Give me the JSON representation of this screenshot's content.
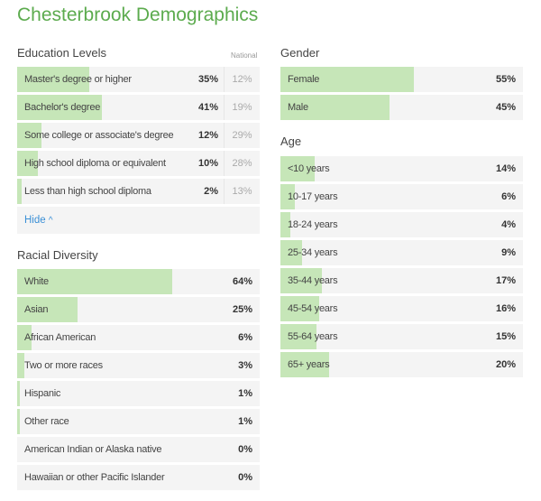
{
  "title": "Chesterbrook Demographics",
  "colors": {
    "title": "#5cab4e",
    "bar": "#c6e6b8",
    "row_bg": "#f4f4f4",
    "link": "#3a8fd6"
  },
  "education": {
    "title": "Education Levels",
    "national_label": "National",
    "hide_label": "Hide",
    "hide_icon": "chevron-up-icon",
    "rows": [
      {
        "label": "Master's degree or higher",
        "value": 35,
        "text": "35%",
        "national": "12%"
      },
      {
        "label": "Bachelor's degree",
        "value": 41,
        "text": "41%",
        "national": "19%"
      },
      {
        "label": "Some college or associate's degree",
        "value": 12,
        "text": "12%",
        "national": "29%"
      },
      {
        "label": "High school diploma or equivalent",
        "value": 10,
        "text": "10%",
        "national": "28%"
      },
      {
        "label": "Less than high school diploma",
        "value": 2,
        "text": "2%",
        "national": "13%"
      }
    ]
  },
  "race": {
    "title": "Racial Diversity",
    "rows": [
      {
        "label": "White",
        "value": 64,
        "text": "64%"
      },
      {
        "label": "Asian",
        "value": 25,
        "text": "25%"
      },
      {
        "label": "African American",
        "value": 6,
        "text": "6%"
      },
      {
        "label": "Two or more races",
        "value": 3,
        "text": "3%"
      },
      {
        "label": "Hispanic",
        "value": 1,
        "text": "1%"
      },
      {
        "label": "Other race",
        "value": 1,
        "text": "1%"
      },
      {
        "label": "American Indian or Alaska native",
        "value": 0,
        "text": "0%"
      },
      {
        "label": "Hawaiian or other Pacific Islander",
        "value": 0,
        "text": "0%"
      }
    ]
  },
  "gender": {
    "title": "Gender",
    "rows": [
      {
        "label": "Female",
        "value": 55,
        "text": "55%"
      },
      {
        "label": "Male",
        "value": 45,
        "text": "45%"
      }
    ]
  },
  "age": {
    "title": "Age",
    "rows": [
      {
        "label": "<10 years",
        "value": 14,
        "text": "14%"
      },
      {
        "label": "10-17 years",
        "value": 6,
        "text": "6%"
      },
      {
        "label": "18-24 years",
        "value": 4,
        "text": "4%"
      },
      {
        "label": "25-34 years",
        "value": 9,
        "text": "9%"
      },
      {
        "label": "35-44 years",
        "value": 17,
        "text": "17%"
      },
      {
        "label": "45-54 years",
        "value": 16,
        "text": "16%"
      },
      {
        "label": "55-64 years",
        "value": 15,
        "text": "15%"
      },
      {
        "label": "65+ years",
        "value": 20,
        "text": "20%"
      }
    ]
  }
}
